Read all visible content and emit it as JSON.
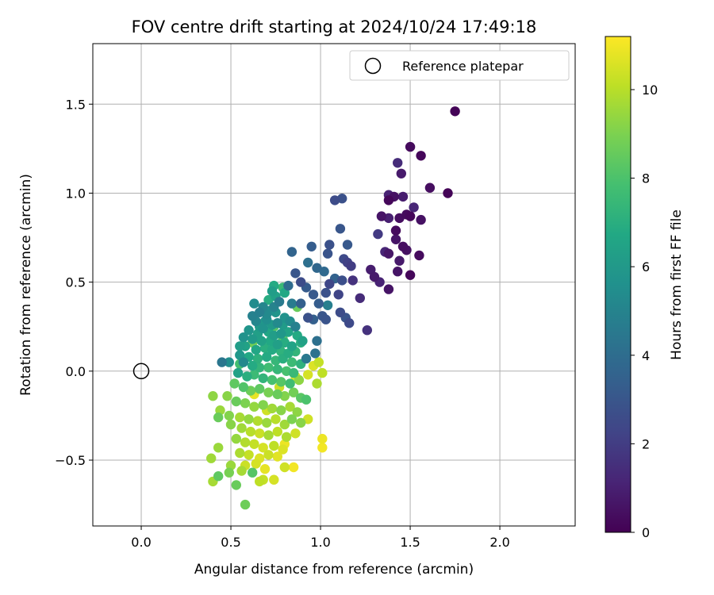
{
  "chart_data": {
    "type": "scatter",
    "title": "FOV centre drift starting at 2024/10/24 17:49:18",
    "xlabel": "Angular distance from reference (arcmin)",
    "ylabel": "Rotation from reference (arcmin)",
    "xlim": [
      -0.27,
      2.42
    ],
    "ylim": [
      -0.87,
      1.84
    ],
    "xticks": [
      0.0,
      0.5,
      1.0,
      1.5,
      2.0
    ],
    "xtick_labels": [
      "0.0",
      "0.5",
      "1.0",
      "1.5",
      "2.0"
    ],
    "yticks": [
      -0.5,
      0.0,
      0.5,
      1.0,
      1.5
    ],
    "ytick_labels": [
      "−0.5",
      "0.0",
      "0.5",
      "1.0",
      "1.5"
    ],
    "grid": true,
    "legend": {
      "entries": [
        "Reference platepar"
      ],
      "placement": "top-right"
    },
    "colorbar": {
      "label": "Hours from first FF file",
      "range": [
        0,
        11.2
      ],
      "ticks": [
        0,
        2,
        4,
        6,
        8,
        10
      ],
      "tick_labels": [
        "0",
        "2",
        "4",
        "6",
        "8",
        "10"
      ],
      "colormap": "viridis"
    },
    "reference_point": {
      "name": "Reference platepar",
      "x": 0.0,
      "y": 0.0
    },
    "points": [
      [
        1.75,
        1.46,
        0.1
      ],
      [
        1.5,
        1.26,
        0.3
      ],
      [
        1.56,
        1.21,
        0.2
      ],
      [
        1.43,
        1.17,
        1.4
      ],
      [
        1.45,
        1.11,
        0.8
      ],
      [
        1.61,
        1.03,
        0.4
      ],
      [
        1.71,
        1.0,
        0.1
      ],
      [
        1.38,
        0.99,
        1.1
      ],
      [
        1.41,
        0.98,
        0.5
      ],
      [
        1.46,
        0.98,
        0.9
      ],
      [
        1.08,
        0.96,
        2.6
      ],
      [
        1.12,
        0.97,
        2.8
      ],
      [
        1.38,
        0.96,
        0.2
      ],
      [
        1.52,
        0.92,
        1.2
      ],
      [
        1.48,
        0.88,
        0.3
      ],
      [
        1.34,
        0.87,
        0.6
      ],
      [
        1.38,
        0.86,
        1.0
      ],
      [
        1.44,
        0.86,
        0.4
      ],
      [
        1.5,
        0.87,
        0.2
      ],
      [
        1.56,
        0.85,
        0.5
      ],
      [
        1.11,
        0.8,
        3.0
      ],
      [
        1.42,
        0.79,
        0.3
      ],
      [
        1.42,
        0.74,
        0.6
      ],
      [
        1.32,
        0.77,
        1.9
      ],
      [
        1.46,
        0.7,
        0.4
      ],
      [
        1.48,
        0.68,
        0.5
      ],
      [
        1.05,
        0.71,
        2.8
      ],
      [
        1.15,
        0.71,
        3.1
      ],
      [
        0.95,
        0.7,
        3.3
      ],
      [
        1.38,
        0.66,
        0.7
      ],
      [
        1.36,
        0.67,
        1.2
      ],
      [
        1.55,
        0.65,
        0.3
      ],
      [
        1.04,
        0.66,
        2.9
      ],
      [
        0.84,
        0.67,
        3.6
      ],
      [
        1.13,
        0.63,
        2.5
      ],
      [
        1.15,
        0.61,
        2.2
      ],
      [
        1.44,
        0.62,
        0.8
      ],
      [
        1.43,
        0.56,
        0.6
      ],
      [
        1.5,
        0.54,
        0.2
      ],
      [
        0.93,
        0.61,
        4.1
      ],
      [
        0.98,
        0.58,
        3.7
      ],
      [
        1.17,
        0.59,
        2.0
      ],
      [
        1.02,
        0.56,
        3.8
      ],
      [
        1.28,
        0.57,
        0.9
      ],
      [
        0.86,
        0.55,
        3.0
      ],
      [
        1.08,
        0.52,
        3.5
      ],
      [
        1.12,
        0.51,
        2.7
      ],
      [
        1.18,
        0.51,
        1.6
      ],
      [
        1.3,
        0.53,
        0.8
      ],
      [
        1.33,
        0.5,
        1.1
      ],
      [
        0.89,
        0.5,
        2.6
      ],
      [
        1.05,
        0.49,
        2.4
      ],
      [
        0.92,
        0.47,
        3.2
      ],
      [
        1.38,
        0.46,
        0.6
      ],
      [
        0.82,
        0.48,
        3.9
      ],
      [
        0.74,
        0.48,
        6.8
      ],
      [
        0.79,
        0.47,
        7.5
      ],
      [
        1.03,
        0.44,
        2.8
      ],
      [
        1.1,
        0.43,
        2.3
      ],
      [
        0.96,
        0.43,
        3.1
      ],
      [
        0.73,
        0.45,
        6.2
      ],
      [
        1.22,
        0.41,
        1.4
      ],
      [
        0.77,
        0.39,
        4.6
      ],
      [
        0.99,
        0.38,
        3.3
      ],
      [
        1.04,
        0.37,
        4.8
      ],
      [
        0.87,
        0.36,
        8.6
      ],
      [
        0.89,
        0.38,
        3.4
      ],
      [
        1.11,
        0.33,
        2.6
      ],
      [
        1.14,
        0.3,
        2.9
      ],
      [
        1.16,
        0.27,
        2.5
      ],
      [
        1.26,
        0.23,
        1.6
      ],
      [
        0.93,
        0.3,
        2.8
      ],
      [
        0.96,
        0.29,
        3.4
      ],
      [
        1.01,
        0.31,
        3.0
      ],
      [
        1.03,
        0.29,
        2.9
      ],
      [
        0.68,
        0.36,
        5.1
      ],
      [
        0.72,
        0.34,
        5.6
      ],
      [
        0.7,
        0.32,
        5.3
      ],
      [
        0.66,
        0.33,
        4.8
      ],
      [
        0.75,
        0.33,
        5.8
      ],
      [
        0.62,
        0.31,
        4.9
      ],
      [
        0.8,
        0.3,
        5.7
      ],
      [
        0.64,
        0.28,
        5.1
      ],
      [
        0.7,
        0.29,
        5.5
      ],
      [
        0.73,
        0.26,
        6.0
      ],
      [
        0.76,
        0.27,
        5.3
      ],
      [
        0.79,
        0.26,
        6.1
      ],
      [
        0.83,
        0.28,
        5.4
      ],
      [
        0.86,
        0.25,
        4.9
      ],
      [
        0.68,
        0.24,
        5.7
      ],
      [
        0.6,
        0.23,
        5.8
      ],
      [
        0.65,
        0.21,
        6.3
      ],
      [
        0.71,
        0.22,
        6.6
      ],
      [
        0.74,
        0.2,
        6.2
      ],
      [
        0.78,
        0.21,
        5.9
      ],
      [
        0.82,
        0.22,
        6.5
      ],
      [
        0.87,
        0.2,
        6.8
      ],
      [
        0.57,
        0.19,
        5.7
      ],
      [
        0.62,
        0.18,
        6.0
      ],
      [
        0.67,
        0.17,
        6.4
      ],
      [
        0.72,
        0.17,
        6.7
      ],
      [
        0.76,
        0.15,
        6.3
      ],
      [
        0.8,
        0.16,
        6.9
      ],
      [
        0.84,
        0.14,
        6.5
      ],
      [
        0.89,
        0.16,
        7.0
      ],
      [
        0.58,
        0.14,
        6.4
      ],
      [
        0.64,
        0.12,
        6.6
      ],
      [
        0.69,
        0.13,
        7.0
      ],
      [
        0.73,
        0.12,
        6.8
      ],
      [
        0.78,
        0.11,
        7.2
      ],
      [
        0.82,
        0.1,
        6.9
      ],
      [
        0.86,
        0.11,
        7.3
      ],
      [
        0.55,
        0.09,
        5.9
      ],
      [
        0.6,
        0.08,
        6.7
      ],
      [
        0.65,
        0.07,
        7.1
      ],
      [
        0.7,
        0.08,
        6.8
      ],
      [
        0.75,
        0.06,
        7.4
      ],
      [
        0.79,
        0.07,
        7.0
      ],
      [
        0.84,
        0.05,
        7.6
      ],
      [
        0.89,
        0.04,
        7.2
      ],
      [
        0.92,
        0.07,
        4.5
      ],
      [
        0.97,
        0.1,
        4.2
      ],
      [
        0.98,
        0.17,
        4.1
      ],
      [
        0.57,
        0.05,
        5.2
      ],
      [
        0.62,
        0.03,
        6.8
      ],
      [
        0.66,
        0.02,
        7.3
      ],
      [
        0.71,
        0.02,
        7.7
      ],
      [
        0.76,
        0.01,
        7.4
      ],
      [
        0.81,
        0.0,
        7.9
      ],
      [
        0.85,
        -0.01,
        7.5
      ],
      [
        0.49,
        0.05,
        5.5
      ],
      [
        0.54,
        -0.01,
        6.4
      ],
      [
        0.59,
        -0.03,
        7.0
      ],
      [
        0.63,
        -0.02,
        7.6
      ],
      [
        0.68,
        -0.04,
        7.3
      ],
      [
        0.73,
        -0.05,
        7.9
      ],
      [
        0.78,
        -0.06,
        8.2
      ],
      [
        0.83,
        -0.07,
        7.7
      ],
      [
        0.88,
        -0.05,
        9.3
      ],
      [
        0.93,
        -0.02,
        10.5
      ],
      [
        0.96,
        0.03,
        10.6
      ],
      [
        0.99,
        0.05,
        10.2
      ],
      [
        1.01,
        -0.01,
        10.1
      ],
      [
        0.98,
        -0.07,
        9.8
      ],
      [
        0.52,
        -0.07,
        8.4
      ],
      [
        0.57,
        -0.09,
        8.1
      ],
      [
        0.61,
        -0.11,
        8.7
      ],
      [
        0.66,
        -0.1,
        8.4
      ],
      [
        0.71,
        -0.12,
        8.9
      ],
      [
        0.76,
        -0.13,
        8.6
      ],
      [
        0.8,
        -0.14,
        9.1
      ],
      [
        0.85,
        -0.12,
        8.8
      ],
      [
        0.89,
        -0.15,
        8.3
      ],
      [
        0.92,
        -0.16,
        8.0
      ],
      [
        0.48,
        -0.14,
        9.2
      ],
      [
        0.53,
        -0.17,
        8.6
      ],
      [
        0.58,
        -0.18,
        9.0
      ],
      [
        0.63,
        -0.2,
        9.4
      ],
      [
        0.68,
        -0.19,
        9.1
      ],
      [
        0.73,
        -0.21,
        9.6
      ],
      [
        0.78,
        -0.22,
        9.2
      ],
      [
        0.83,
        -0.2,
        9.7
      ],
      [
        0.87,
        -0.23,
        9.3
      ],
      [
        0.4,
        -0.14,
        9.3
      ],
      [
        0.44,
        -0.22,
        9.5
      ],
      [
        0.49,
        -0.25,
        9.1
      ],
      [
        0.55,
        -0.26,
        9.7
      ],
      [
        0.6,
        -0.27,
        9.4
      ],
      [
        0.65,
        -0.28,
        9.9
      ],
      [
        0.7,
        -0.29,
        9.5
      ],
      [
        0.75,
        -0.27,
        10.0
      ],
      [
        0.8,
        -0.3,
        9.6
      ],
      [
        0.84,
        -0.27,
        9.0
      ],
      [
        0.89,
        -0.29,
        9.2
      ],
      [
        0.93,
        -0.27,
        10.4
      ],
      [
        0.43,
        -0.26,
        8.6
      ],
      [
        0.5,
        -0.3,
        9.2
      ],
      [
        0.56,
        -0.32,
        9.6
      ],
      [
        0.61,
        -0.34,
        10.0
      ],
      [
        0.66,
        -0.35,
        10.3
      ],
      [
        0.71,
        -0.36,
        9.7
      ],
      [
        0.76,
        -0.34,
        10.1
      ],
      [
        0.81,
        -0.37,
        9.8
      ],
      [
        0.86,
        -0.35,
        10.4
      ],
      [
        0.53,
        -0.38,
        9.4
      ],
      [
        0.58,
        -0.4,
        9.9
      ],
      [
        0.63,
        -0.41,
        10.2
      ],
      [
        0.68,
        -0.43,
        10.5
      ],
      [
        0.74,
        -0.42,
        10.1
      ],
      [
        0.79,
        -0.44,
        10.6
      ],
      [
        0.43,
        -0.43,
        9.5
      ],
      [
        0.55,
        -0.46,
        9.8
      ],
      [
        0.6,
        -0.47,
        10.2
      ],
      [
        0.66,
        -0.49,
        10.6
      ],
      [
        0.71,
        -0.47,
        10.3
      ],
      [
        0.76,
        -0.48,
        10.7
      ],
      [
        0.8,
        -0.41,
        10.9
      ],
      [
        0.39,
        -0.49,
        9.6
      ],
      [
        0.5,
        -0.53,
        9.5
      ],
      [
        0.58,
        -0.53,
        10.3
      ],
      [
        0.64,
        -0.52,
        10.5
      ],
      [
        0.69,
        -0.55,
        10.8
      ],
      [
        0.8,
        -0.54,
        10.4
      ],
      [
        0.85,
        -0.54,
        11.0
      ],
      [
        0.43,
        -0.59,
        8.4
      ],
      [
        0.49,
        -0.57,
        8.9
      ],
      [
        0.56,
        -0.56,
        9.7
      ],
      [
        0.62,
        -0.57,
        8.2
      ],
      [
        0.68,
        -0.61,
        10.2
      ],
      [
        0.74,
        -0.61,
        10.5
      ],
      [
        0.4,
        -0.62,
        9.7
      ],
      [
        0.53,
        -0.64,
        8.6
      ],
      [
        0.66,
        -0.62,
        10.1
      ],
      [
        0.58,
        -0.75,
        8.7
      ],
      [
        1.01,
        -0.38,
        10.9
      ],
      [
        1.01,
        -0.43,
        11.0
      ],
      [
        0.74,
        0.36,
        5.0
      ],
      [
        0.69,
        0.28,
        5.9
      ],
      [
        0.66,
        0.25,
        6.1
      ],
      [
        0.63,
        0.38,
        5.4
      ],
      [
        0.75,
        0.42,
        6.4
      ],
      [
        0.8,
        0.44,
        6.7
      ],
      [
        0.84,
        0.38,
        4.6
      ],
      [
        0.71,
        0.4,
        6.9
      ],
      [
        0.55,
        0.14,
        6.2
      ],
      [
        0.45,
        0.05,
        4.4
      ],
      [
        0.55,
        0.04,
        7.8
      ],
      [
        0.62,
        0.16,
        8.8
      ],
      [
        0.74,
        0.25,
        8.2
      ],
      [
        0.79,
        0.18,
        8.1
      ],
      [
        0.9,
        0.17,
        6.4
      ],
      [
        0.7,
        -0.22,
        10.4
      ],
      [
        0.63,
        -0.13,
        10.8
      ],
      [
        0.77,
        -0.09,
        10.3
      ],
      [
        0.86,
        -0.03,
        10.6
      ]
    ]
  }
}
